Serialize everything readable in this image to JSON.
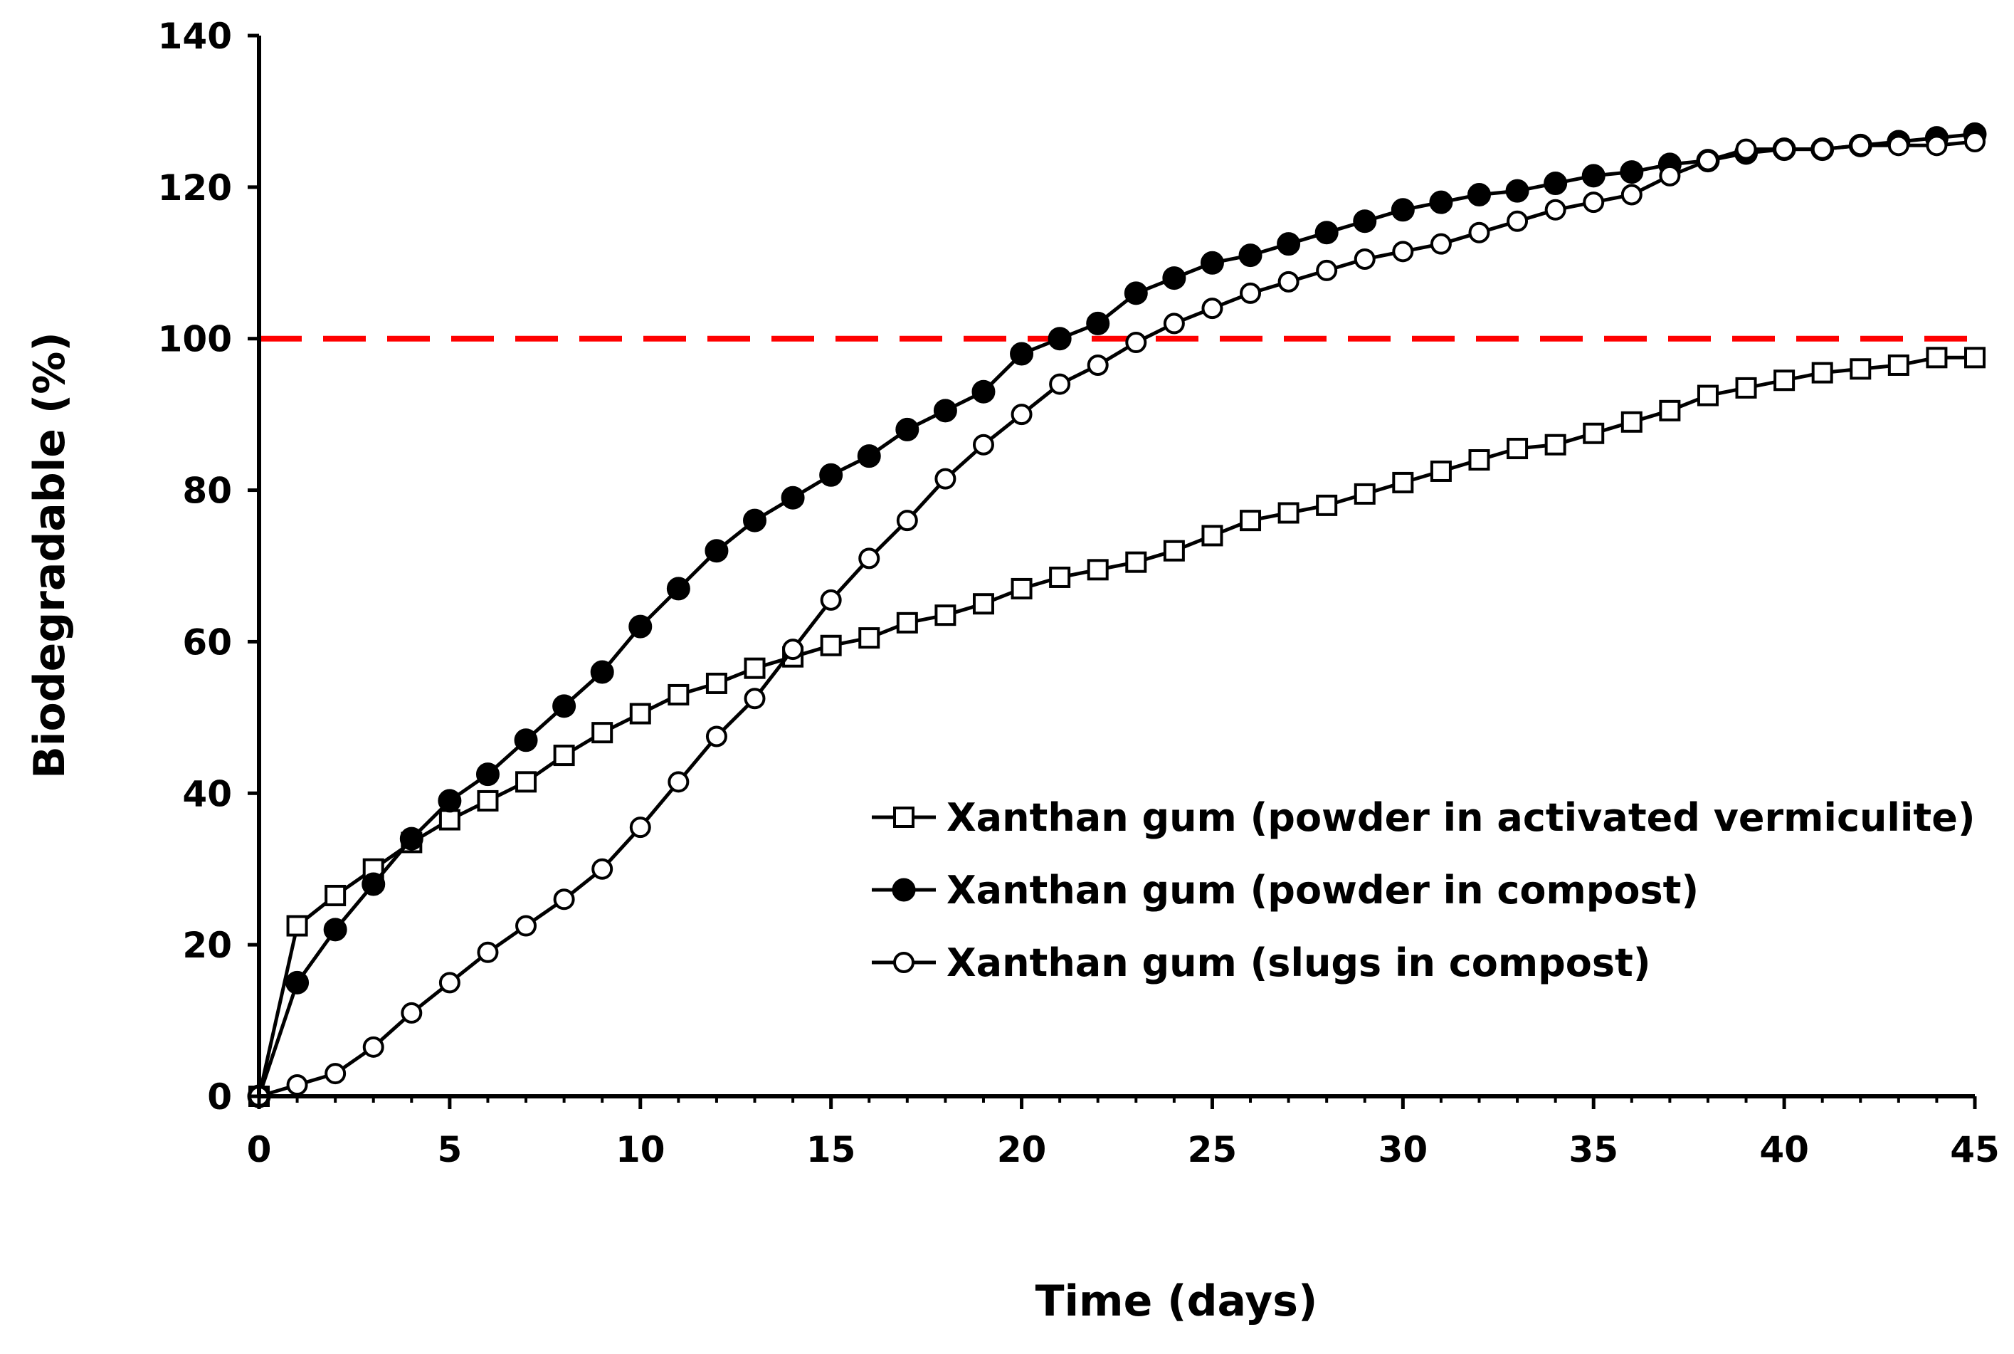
{
  "chart_data": {
    "type": "line",
    "title": "",
    "xlabel": "Time (days)",
    "ylabel": "Biodegradable (%)",
    "xlim": [
      0,
      45
    ],
    "ylim": [
      0,
      140
    ],
    "xticks": [
      0,
      5,
      10,
      15,
      20,
      25,
      30,
      35,
      40,
      45
    ],
    "yticks": [
      0,
      20,
      40,
      60,
      80,
      100,
      120,
      140
    ],
    "grid": false,
    "legend_position": "center-right",
    "reference_line": {
      "y": 100,
      "style": "dashed",
      "color": "#ff0000"
    },
    "series": [
      {
        "name": "Xanthan gum (powder in activated vermiculite)",
        "marker": "open-square",
        "color": "#000000",
        "x": [
          0,
          1,
          2,
          3,
          4,
          5,
          6,
          7,
          8,
          9,
          10,
          11,
          12,
          13,
          14,
          15,
          16,
          17,
          18,
          19,
          20,
          21,
          22,
          23,
          24,
          25,
          26,
          27,
          28,
          29,
          30,
          31,
          32,
          33,
          34,
          35,
          36,
          37,
          38,
          39,
          40,
          41,
          42,
          43,
          44,
          45
        ],
        "y": [
          0,
          22.5,
          26.5,
          30,
          33.5,
          36.5,
          39,
          41.5,
          45,
          48,
          50.5,
          53,
          54.5,
          56.5,
          58,
          59.5,
          60.5,
          62.5,
          63.5,
          65,
          67,
          68.5,
          69.5,
          70.5,
          72,
          74,
          76,
          77,
          78,
          79.5,
          81,
          82.5,
          84,
          85.5,
          86,
          87.5,
          89,
          90.5,
          92.5,
          93.5,
          94.5,
          95.5,
          96,
          96.5,
          97.5,
          97.5
        ]
      },
      {
        "name": "Xanthan gum (powder in compost)",
        "marker": "filled-circle",
        "color": "#000000",
        "x": [
          0,
          1,
          2,
          3,
          4,
          5,
          6,
          7,
          8,
          9,
          10,
          11,
          12,
          13,
          14,
          15,
          16,
          17,
          18,
          19,
          20,
          21,
          22,
          23,
          24,
          25,
          26,
          27,
          28,
          29,
          30,
          31,
          32,
          33,
          34,
          35,
          36,
          37,
          38,
          39,
          40,
          41,
          42,
          43,
          44,
          45
        ],
        "y": [
          0,
          15,
          22,
          28,
          34,
          39,
          42.5,
          47,
          51.5,
          56,
          62,
          67,
          72,
          76,
          79,
          82,
          84.5,
          88,
          90.5,
          93,
          98,
          100,
          102,
          106,
          108,
          110,
          111,
          112.5,
          114,
          115.5,
          117,
          118,
          119,
          119.5,
          120.5,
          121.5,
          122,
          123,
          123.5,
          124.5,
          125,
          125,
          125.5,
          126,
          126.5,
          127
        ]
      },
      {
        "name": "Xanthan gum (slugs in compost)",
        "marker": "open-circle",
        "color": "#000000",
        "x": [
          0,
          1,
          2,
          3,
          4,
          5,
          6,
          7,
          8,
          9,
          10,
          11,
          12,
          13,
          14,
          15,
          16,
          17,
          18,
          19,
          20,
          21,
          22,
          23,
          24,
          25,
          26,
          27,
          28,
          29,
          30,
          31,
          32,
          33,
          34,
          35,
          36,
          37,
          38,
          39,
          40,
          41,
          42,
          43,
          44,
          45
        ],
        "y": [
          0,
          1.5,
          3,
          6.5,
          11,
          15,
          19,
          22.5,
          26,
          30,
          35.5,
          41.5,
          47.5,
          52.5,
          59,
          65.5,
          71,
          76,
          81.5,
          86,
          90,
          94,
          96.5,
          99.5,
          102,
          104,
          106,
          107.5,
          109,
          110.5,
          111.5,
          112.5,
          114,
          115.5,
          117,
          118,
          119,
          121.5,
          123.5,
          125,
          125,
          125,
          125.5,
          125.5,
          125.5,
          126
        ]
      }
    ]
  }
}
